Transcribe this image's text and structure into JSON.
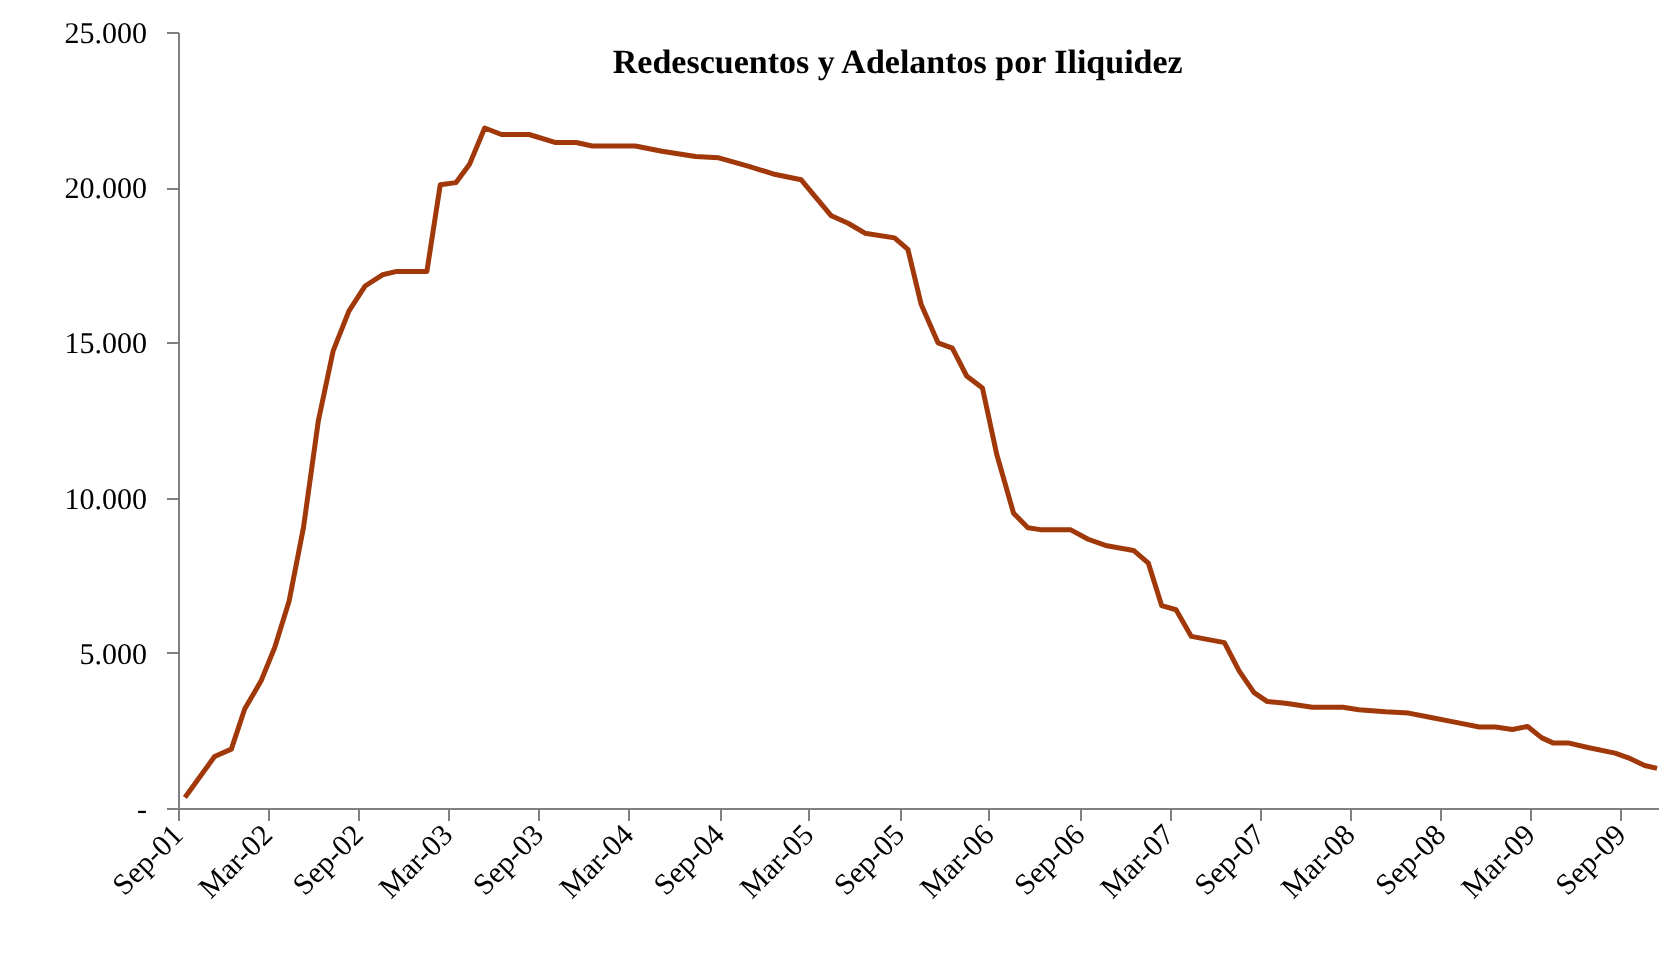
{
  "chart_data": {
    "type": "line",
    "title": "Redescuentos y Adelantos por Iliquidez",
    "x": [
      "2001-09-13",
      "2001-11-12",
      "2001-12-16",
      "2002-01-12",
      "2002-02-14",
      "2002-03-14",
      "2002-04-12",
      "2002-05-11",
      "2002-06-10",
      "2002-07-10",
      "2002-08-11",
      "2002-09-13",
      "2002-10-18",
      "2002-11-16",
      "2003-01-16",
      "2003-02-12",
      "2003-03-16",
      "2003-04-12",
      "2003-05-13",
      "2003-06-16",
      "2003-08-11",
      "2003-10-04",
      "2003-11-14",
      "2003-12-17",
      "2004-03-13",
      "2004-05-06",
      "2004-07-13",
      "2004-08-29",
      "2004-10-29",
      "2004-12-22",
      "2005-02-12",
      "2005-03-11",
      "2005-04-14",
      "2005-05-18",
      "2005-06-21",
      "2005-08-20",
      "2005-09-16",
      "2005-10-13",
      "2005-11-16",
      "2005-12-15",
      "2006-01-13",
      "2006-02-14",
      "2006-03-15",
      "2006-04-18",
      "2006-05-17",
      "2006-06-11",
      "2006-08-11",
      "2006-09-16",
      "2006-10-24",
      "2006-12-17",
      "2007-01-16",
      "2007-02-12",
      "2007-03-13",
      "2007-04-13",
      "2007-06-19",
      "2007-07-19",
      "2007-08-18",
      "2007-09-14",
      "2007-10-21",
      "2007-12-14",
      "2008-02-14",
      "2008-03-17",
      "2008-05-10",
      "2008-06-26",
      "2008-08-13",
      "2008-09-30",
      "2008-11-16",
      "2008-12-19",
      "2009-01-22",
      "2009-02-22",
      "2009-03-22",
      "2009-04-14",
      "2009-05-15",
      "2009-06-24",
      "2009-08-18",
      "2009-09-14",
      "2009-10-17",
      "2009-11-11"
    ],
    "series": [
      {
        "color": "#a0380a",
        "values": [
          370,
          1690,
          1930,
          3220,
          4120,
          5210,
          6700,
          9060,
          12490,
          14750,
          16040,
          16850,
          17210,
          17320,
          17320,
          20110,
          20180,
          20760,
          21940,
          21730,
          21730,
          21470,
          21470,
          21360,
          21360,
          21190,
          21020,
          20980,
          20700,
          20440,
          20270,
          19750,
          19110,
          18870,
          18550,
          18400,
          18030,
          16250,
          15020,
          14850,
          13950,
          13560,
          11420,
          9530,
          9060,
          9000,
          9000,
          8690,
          8480,
          8330,
          7920,
          6550,
          6420,
          5560,
          5360,
          4440,
          3750,
          3460,
          3410,
          3280,
          3280,
          3200,
          3130,
          3090,
          2940,
          2790,
          2640,
          2640,
          2560,
          2660,
          2300,
          2130,
          2130,
          1980,
          1800,
          1650,
          1400,
          1310
        ]
      }
    ],
    "xlim": [
      "2001-09-01",
      "2009-11-15"
    ],
    "xticks": [
      {
        "value": "2001-09-01",
        "label": "Sep-01"
      },
      {
        "value": "2002-03-01",
        "label": "Mar-02"
      },
      {
        "value": "2002-09-01",
        "label": "Sep-02"
      },
      {
        "value": "2003-03-01",
        "label": "Mar-03"
      },
      {
        "value": "2003-09-01",
        "label": "Sep-03"
      },
      {
        "value": "2004-03-01",
        "label": "Mar-04"
      },
      {
        "value": "2004-09-01",
        "label": "Sep-04"
      },
      {
        "value": "2005-03-01",
        "label": "Mar-05"
      },
      {
        "value": "2005-09-01",
        "label": "Sep-05"
      },
      {
        "value": "2006-03-01",
        "label": "Mar-06"
      },
      {
        "value": "2006-09-01",
        "label": "Sep-06"
      },
      {
        "value": "2007-03-01",
        "label": "Mar-07"
      },
      {
        "value": "2007-09-01",
        "label": "Sep-07"
      },
      {
        "value": "2008-03-01",
        "label": "Mar-08"
      },
      {
        "value": "2008-09-01",
        "label": "Sep-08"
      },
      {
        "value": "2009-03-01",
        "label": "Mar-09"
      },
      {
        "value": "2009-09-01",
        "label": "Sep-09"
      }
    ],
    "ylim": [
      0,
      25000
    ],
    "yticks": [
      {
        "value": 0,
        "label": "-"
      },
      {
        "value": 5000,
        "label": "5.000"
      },
      {
        "value": 10000,
        "label": "10.000"
      },
      {
        "value": 15000,
        "label": "15.000"
      },
      {
        "value": 20000,
        "label": "20.000"
      },
      {
        "value": 25000,
        "label": "25.000"
      }
    ],
    "grid": false,
    "marker": "none",
    "line_style": "solid"
  }
}
